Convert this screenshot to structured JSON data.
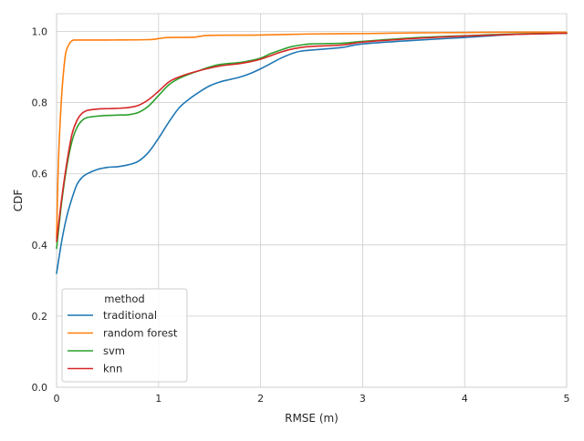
{
  "chart_data": {
    "type": "line",
    "title": "",
    "xlabel": "RMSE (m)",
    "ylabel": "CDF",
    "xlim": [
      0,
      5
    ],
    "ylim": [
      0,
      1.05
    ],
    "xticks": [
      0,
      1,
      2,
      3,
      4,
      5
    ],
    "yticks": [
      0.0,
      0.2,
      0.4,
      0.6,
      0.8,
      1.0
    ],
    "xtick_labels": [
      "0",
      "1",
      "2",
      "3",
      "4",
      "5"
    ],
    "ytick_labels": [
      "0.0",
      "0.2",
      "0.4",
      "0.6",
      "0.8",
      "1.0"
    ],
    "grid": true,
    "legend": {
      "title": "method",
      "placement": "lower-left"
    },
    "series": [
      {
        "name": "traditional",
        "color": "#1f77b4",
        "x": [
          0,
          0.05,
          0.1,
          0.15,
          0.2,
          0.25,
          0.3,
          0.4,
          0.5,
          0.6,
          0.7,
          0.8,
          0.9,
          1.0,
          1.1,
          1.2,
          1.3,
          1.4,
          1.5,
          1.6,
          1.7,
          1.8,
          1.9,
          2.0,
          2.1,
          2.2,
          2.3,
          2.4,
          2.6,
          2.8,
          3.0,
          3.5,
          4.0,
          4.5,
          5.0
        ],
        "y": [
          0.32,
          0.41,
          0.48,
          0.53,
          0.57,
          0.59,
          0.6,
          0.612,
          0.618,
          0.62,
          0.625,
          0.635,
          0.66,
          0.7,
          0.745,
          0.785,
          0.81,
          0.83,
          0.847,
          0.858,
          0.865,
          0.872,
          0.882,
          0.895,
          0.91,
          0.925,
          0.937,
          0.945,
          0.95,
          0.955,
          0.965,
          0.975,
          0.983,
          0.992,
          0.995
        ]
      },
      {
        "name": "random forest",
        "color": "#ff7f0e",
        "x": [
          0,
          0.02,
          0.05,
          0.08,
          0.1,
          0.13,
          0.16,
          0.2,
          0.5,
          0.9,
          1.0,
          1.05,
          1.1,
          1.35,
          1.5,
          2.0,
          2.5,
          3.0,
          3.5,
          4.0,
          4.5,
          5.0
        ],
        "y": [
          0.42,
          0.65,
          0.82,
          0.92,
          0.95,
          0.968,
          0.975,
          0.976,
          0.976,
          0.977,
          0.98,
          0.982,
          0.983,
          0.984,
          0.989,
          0.99,
          0.993,
          0.994,
          0.996,
          0.997,
          0.998,
          0.998
        ]
      },
      {
        "name": "svm",
        "color": "#2ca02c",
        "x": [
          0,
          0.05,
          0.1,
          0.15,
          0.2,
          0.25,
          0.3,
          0.4,
          0.5,
          0.6,
          0.7,
          0.8,
          0.9,
          1.0,
          1.1,
          1.2,
          1.3,
          1.4,
          1.5,
          1.6,
          1.8,
          1.9,
          2.0,
          2.1,
          2.2,
          2.3,
          2.4,
          2.5,
          2.8,
          3.0,
          3.5,
          4.0,
          4.5,
          5.0
        ],
        "y": [
          0.39,
          0.52,
          0.62,
          0.69,
          0.73,
          0.75,
          0.758,
          0.762,
          0.764,
          0.765,
          0.766,
          0.772,
          0.79,
          0.82,
          0.85,
          0.868,
          0.88,
          0.89,
          0.9,
          0.907,
          0.913,
          0.918,
          0.925,
          0.938,
          0.948,
          0.957,
          0.962,
          0.965,
          0.967,
          0.972,
          0.982,
          0.988,
          0.993,
          0.995
        ]
      },
      {
        "name": "knn",
        "color": "#d62728",
        "x": [
          0,
          0.05,
          0.1,
          0.15,
          0.2,
          0.25,
          0.3,
          0.4,
          0.5,
          0.6,
          0.7,
          0.8,
          0.9,
          1.0,
          1.1,
          1.2,
          1.3,
          1.4,
          1.5,
          1.6,
          1.8,
          1.9,
          2.0,
          2.1,
          2.2,
          2.3,
          2.4,
          2.5,
          2.8,
          3.0,
          3.5,
          4.0,
          4.5,
          5.0
        ],
        "y": [
          0.41,
          0.53,
          0.63,
          0.71,
          0.75,
          0.77,
          0.778,
          0.782,
          0.783,
          0.784,
          0.786,
          0.792,
          0.808,
          0.832,
          0.858,
          0.872,
          0.882,
          0.89,
          0.897,
          0.903,
          0.91,
          0.915,
          0.922,
          0.932,
          0.942,
          0.95,
          0.955,
          0.958,
          0.962,
          0.97,
          0.98,
          0.987,
          0.992,
          0.995
        ]
      }
    ]
  }
}
